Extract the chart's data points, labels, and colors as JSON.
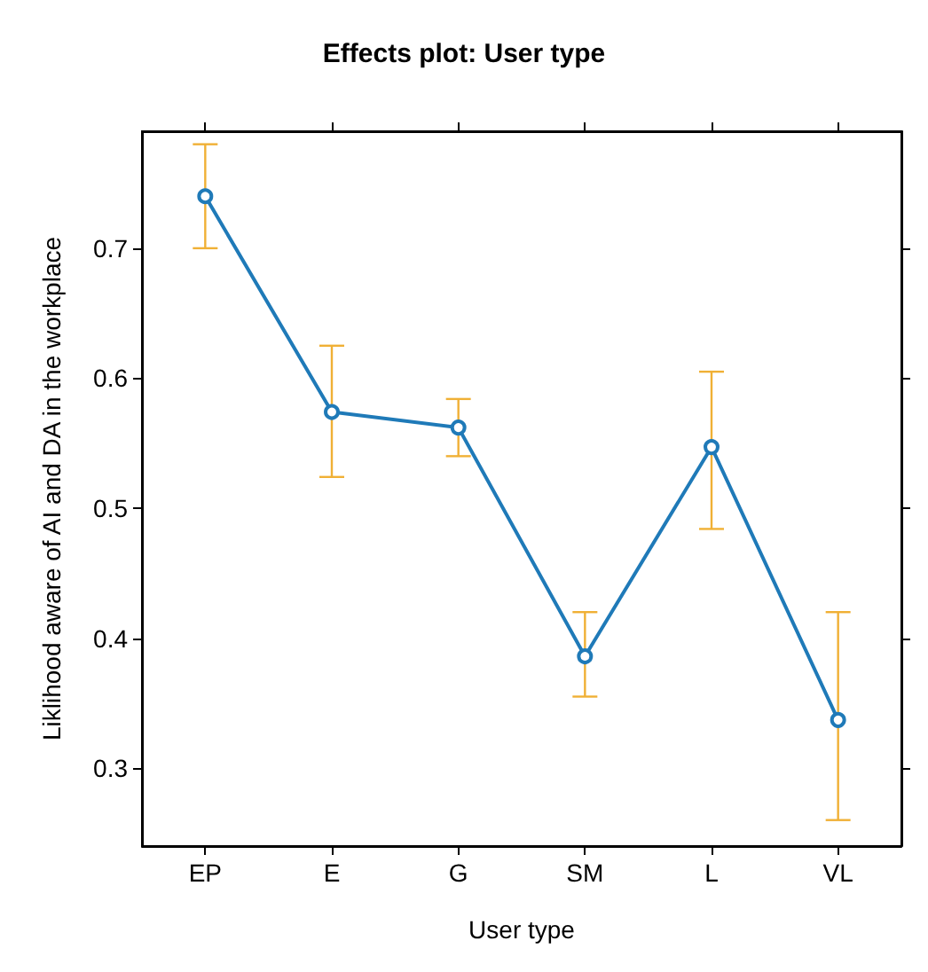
{
  "chart_data": {
    "type": "line",
    "title": "Effects plot: User type",
    "xlabel": "User type",
    "ylabel": "Liklihood aware of AI and DA in the workplace",
    "categories": [
      "EP",
      "E",
      "G",
      "SM",
      "L",
      "VL"
    ],
    "series": [
      {
        "color": "#1f7ab8",
        "values": [
          0.74,
          0.574,
          0.562,
          0.386,
          0.547,
          0.337
        ],
        "errors": [
          [
            0.7,
            0.78
          ],
          [
            0.524,
            0.625
          ],
          [
            0.54,
            0.584
          ],
          [
            0.355,
            0.42
          ],
          [
            0.484,
            0.605
          ],
          [
            0.26,
            0.42
          ]
        ]
      }
    ],
    "ylim": [
      0.24,
      0.79
    ],
    "yticks": [
      0.3,
      0.4,
      0.5,
      0.6,
      0.7
    ],
    "grid": false,
    "marker": "circle",
    "line_style": "solid"
  }
}
